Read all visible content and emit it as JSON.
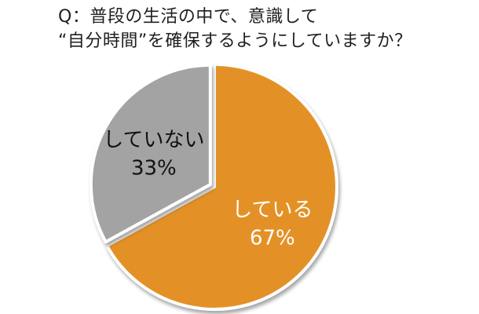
{
  "question": {
    "line1": "Q：普段の生活の中で、意識して",
    "line2": "“自分時間”を確保するようにしていますか？"
  },
  "chart_data": {
    "type": "pie",
    "title": "Q：普段の生活の中で、意識して “自分時間”を確保するようにしていますか？",
    "slices": [
      {
        "label": "している",
        "value": 67,
        "display": "67%",
        "color": "#e39126",
        "text_color": "#ffffff"
      },
      {
        "label": "していない",
        "value": 33,
        "display": "33%",
        "color": "#a3a3a3",
        "text_color": "#111111"
      }
    ],
    "start": "12 o'clock",
    "direction": "clockwise",
    "exploded_slice": "していない"
  }
}
